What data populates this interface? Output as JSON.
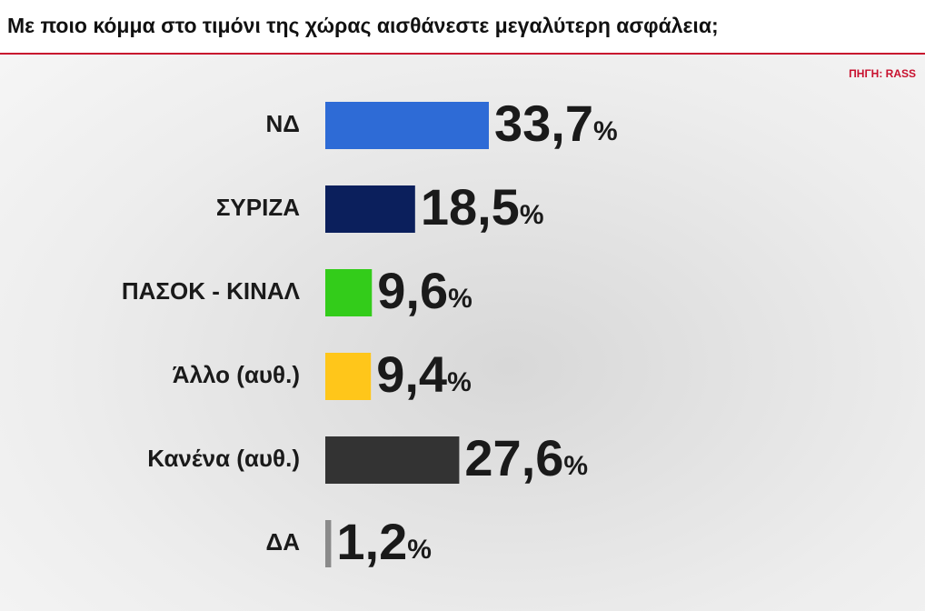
{
  "chart_data": {
    "type": "bar",
    "orientation": "horizontal",
    "title": "Με ποιο κόμμα στο τιμόνι της χώρας αισθάνεστε μεγαλύτερη ασφάλεια;",
    "source": "ΠΗΓΗ: RASS",
    "categories": [
      "ΝΔ",
      "ΣΥΡΙΖΑ",
      "ΠΑΣΟΚ - ΚΙΝΑΛ",
      "Άλλο (αυθ.)",
      "Κανένα (αυθ.)",
      "ΔΑ"
    ],
    "values": [
      33.7,
      18.5,
      9.6,
      9.4,
      27.6,
      1.2
    ],
    "value_labels": [
      "33,7%",
      "18,5%",
      "9,6%",
      "9,4%",
      "27,6%",
      "1,2%"
    ],
    "colors": [
      "#2e6bd6",
      "#0b1f5c",
      "#33cc1a",
      "#ffc61a",
      "#333333",
      "#8a8a8a"
    ]
  }
}
